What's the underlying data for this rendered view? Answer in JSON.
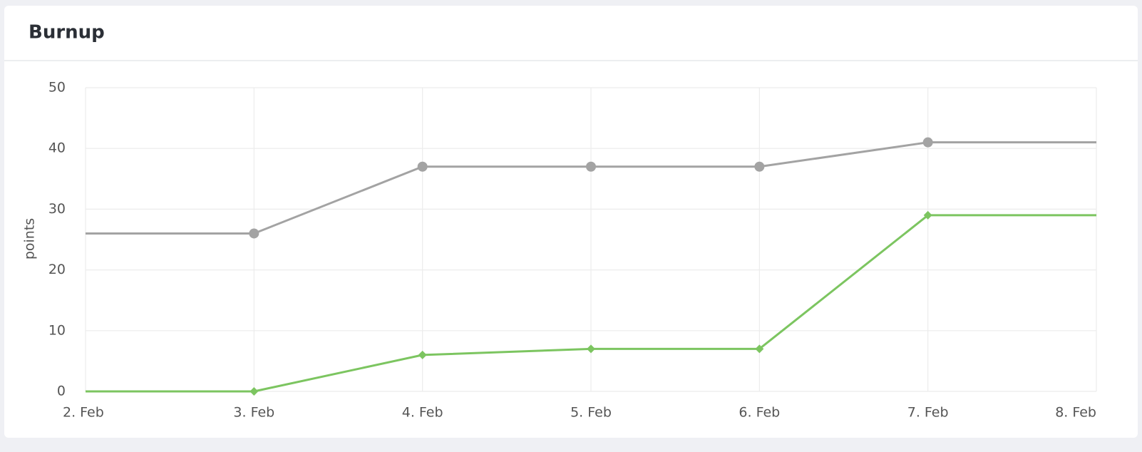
{
  "chart_data": {
    "type": "line",
    "title": "Burnup",
    "y_label": "points",
    "categories": [
      "2. Feb",
      "3. Feb",
      "4. Feb",
      "5. Feb",
      "6. Feb",
      "7. Feb",
      "8. Feb"
    ],
    "series": [
      {
        "color": "#a3a3a3",
        "marker": "circle",
        "values": [
          26,
          26,
          37,
          37,
          37,
          41,
          41
        ]
      },
      {
        "color": "#7cc560",
        "marker": "diamond",
        "values": [
          0,
          0,
          6,
          7,
          7,
          29,
          29
        ]
      }
    ],
    "ylim": [
      0,
      50
    ],
    "yticks": [
      0,
      10,
      20,
      30,
      40,
      50
    ],
    "grid": true
  }
}
